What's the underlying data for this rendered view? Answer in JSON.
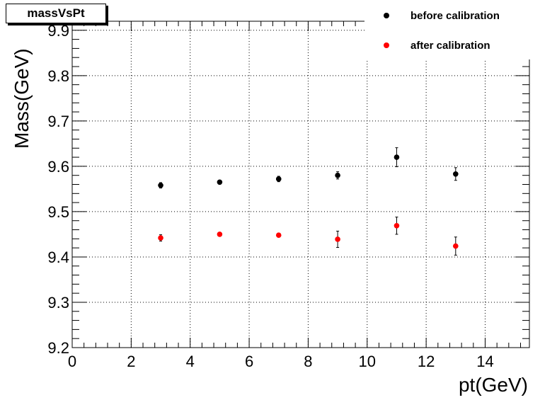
{
  "chart_data": {
    "type": "scatter",
    "title": "massVsPt",
    "xlabel": "pt(GeV)",
    "ylabel": "Mass(GeV)",
    "xlim": [
      0,
      15.5
    ],
    "ylim": [
      9.2,
      9.92
    ],
    "xticks": [
      0,
      2,
      4,
      6,
      8,
      10,
      12,
      14
    ],
    "xtick_labels": [
      "0",
      "2",
      "4",
      "6",
      "8",
      "10",
      "12",
      "14"
    ],
    "yticks": [
      9.2,
      9.3,
      9.4,
      9.5,
      9.6,
      9.7,
      9.8,
      9.9
    ],
    "ytick_labels": [
      "9.2",
      "9.3",
      "9.4",
      "9.5",
      "9.6",
      "9.7",
      "9.8",
      "9.9"
    ],
    "grid": true,
    "legend_position": "top-right",
    "series": [
      {
        "name": "before calibration",
        "color": "#000000",
        "x": [
          3,
          5,
          7,
          9,
          11,
          13
        ],
        "y": [
          9.558,
          9.565,
          9.572,
          9.58,
          9.62,
          9.583
        ],
        "yerr": [
          0.006,
          0.003,
          0.006,
          0.008,
          0.021,
          0.014
        ]
      },
      {
        "name": "after calibration",
        "color": "#ff0000",
        "x": [
          3,
          5,
          7,
          9,
          11,
          13
        ],
        "y": [
          9.442,
          9.45,
          9.448,
          9.439,
          9.469,
          9.424
        ],
        "yerr": [
          0.007,
          0.002,
          0.003,
          0.018,
          0.019,
          0.02
        ]
      }
    ]
  }
}
